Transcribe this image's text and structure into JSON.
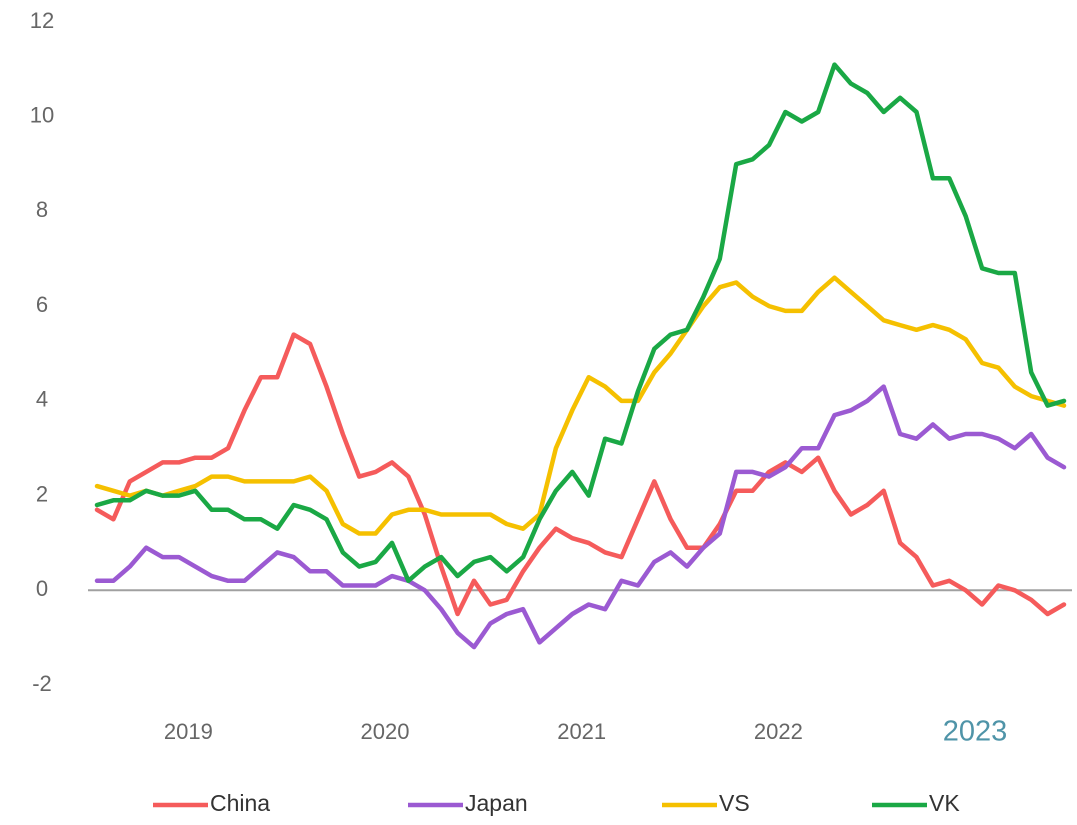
{
  "chart_data": {
    "type": "line",
    "categories": [
      null,
      null,
      null,
      null,
      null,
      null,
      "2019",
      null,
      null,
      null,
      null,
      null,
      null,
      null,
      null,
      null,
      null,
      null,
      "2020",
      null,
      null,
      null,
      null,
      null,
      null,
      null,
      null,
      null,
      null,
      null,
      "2021",
      null,
      null,
      null,
      null,
      null,
      null,
      null,
      null,
      null,
      null,
      null,
      "2022",
      null,
      null,
      null,
      null,
      null,
      null,
      null,
      null,
      null,
      null,
      null,
      "2023",
      null,
      null,
      null,
      null,
      null
    ],
    "series": [
      {
        "name": "China",
        "color": "#f55b5b",
        "values": [
          1.7,
          1.5,
          2.3,
          2.5,
          2.7,
          2.7,
          2.8,
          2.8,
          3.0,
          3.8,
          4.5,
          4.5,
          5.4,
          5.2,
          4.3,
          3.3,
          2.4,
          2.5,
          2.7,
          2.4,
          1.6,
          0.5,
          -0.5,
          0.2,
          -0.3,
          -0.2,
          0.4,
          0.9,
          1.3,
          1.1,
          1.0,
          0.8,
          0.7,
          1.5,
          2.3,
          1.5,
          0.9,
          0.9,
          1.4,
          2.1,
          2.1,
          2.5,
          2.7,
          2.5,
          2.8,
          2.1,
          1.6,
          1.8,
          2.1,
          1.0,
          0.7,
          0.1,
          0.2,
          0.0,
          -0.3,
          0.1,
          0.0,
          -0.2,
          -0.5,
          -0.3
        ]
      },
      {
        "name": "Japan",
        "color": "#9b5ad2",
        "values": [
          0.2,
          0.2,
          0.5,
          0.9,
          0.7,
          0.7,
          0.5,
          0.3,
          0.2,
          0.2,
          0.5,
          0.8,
          0.7,
          0.4,
          0.4,
          0.1,
          0.1,
          0.1,
          0.3,
          0.2,
          0.0,
          -0.4,
          -0.9,
          -1.2,
          -0.7,
          -0.5,
          -0.4,
          -1.1,
          -0.8,
          -0.5,
          -0.3,
          -0.4,
          0.2,
          0.1,
          0.6,
          0.8,
          0.5,
          0.9,
          1.2,
          2.5,
          2.5,
          2.4,
          2.6,
          3.0,
          3.0,
          3.7,
          3.8,
          4.0,
          4.3,
          3.3,
          3.2,
          3.5,
          3.2,
          3.3,
          3.3,
          3.2,
          3.0,
          3.3,
          2.8,
          2.6
        ]
      },
      {
        "name": "VS",
        "color": "#f5c000",
        "values": [
          2.2,
          2.1,
          2.0,
          2.1,
          2.0,
          2.1,
          2.2,
          2.4,
          2.4,
          2.3,
          2.3,
          2.3,
          2.3,
          2.4,
          2.1,
          1.4,
          1.2,
          1.2,
          1.6,
          1.7,
          1.7,
          1.6,
          1.6,
          1.6,
          1.6,
          1.4,
          1.3,
          1.6,
          3.0,
          3.8,
          4.5,
          4.3,
          4.0,
          4.0,
          4.6,
          5.0,
          5.5,
          6.0,
          6.4,
          6.5,
          6.2,
          6.0,
          5.9,
          5.9,
          6.3,
          6.6,
          6.3,
          6.0,
          5.7,
          5.6,
          5.5,
          5.6,
          5.5,
          5.3,
          4.8,
          4.7,
          4.3,
          4.1,
          4.0,
          3.9
        ]
      },
      {
        "name": "VK",
        "color": "#1aa845",
        "values": [
          1.8,
          1.9,
          1.9,
          2.1,
          2.0,
          2.0,
          2.1,
          1.7,
          1.7,
          1.5,
          1.5,
          1.3,
          1.8,
          1.7,
          1.5,
          0.8,
          0.5,
          0.6,
          1.0,
          0.2,
          0.5,
          0.7,
          0.3,
          0.6,
          0.7,
          0.4,
          0.7,
          1.5,
          2.1,
          2.5,
          2.0,
          3.2,
          3.1,
          4.2,
          5.1,
          5.4,
          5.5,
          6.2,
          7.0,
          9.0,
          9.1,
          9.4,
          10.1,
          9.9,
          10.1,
          11.1,
          10.7,
          10.5,
          10.1,
          10.4,
          10.1,
          8.7,
          8.7,
          7.9,
          6.8,
          6.7,
          6.7,
          4.6,
          3.9,
          4.0
        ]
      }
    ],
    "ylim": [
      -2,
      12
    ],
    "yticks": [
      -2,
      0,
      2,
      4,
      6,
      8,
      10,
      12
    ],
    "zero_line": true,
    "grid": false,
    "legend": "bottom"
  }
}
